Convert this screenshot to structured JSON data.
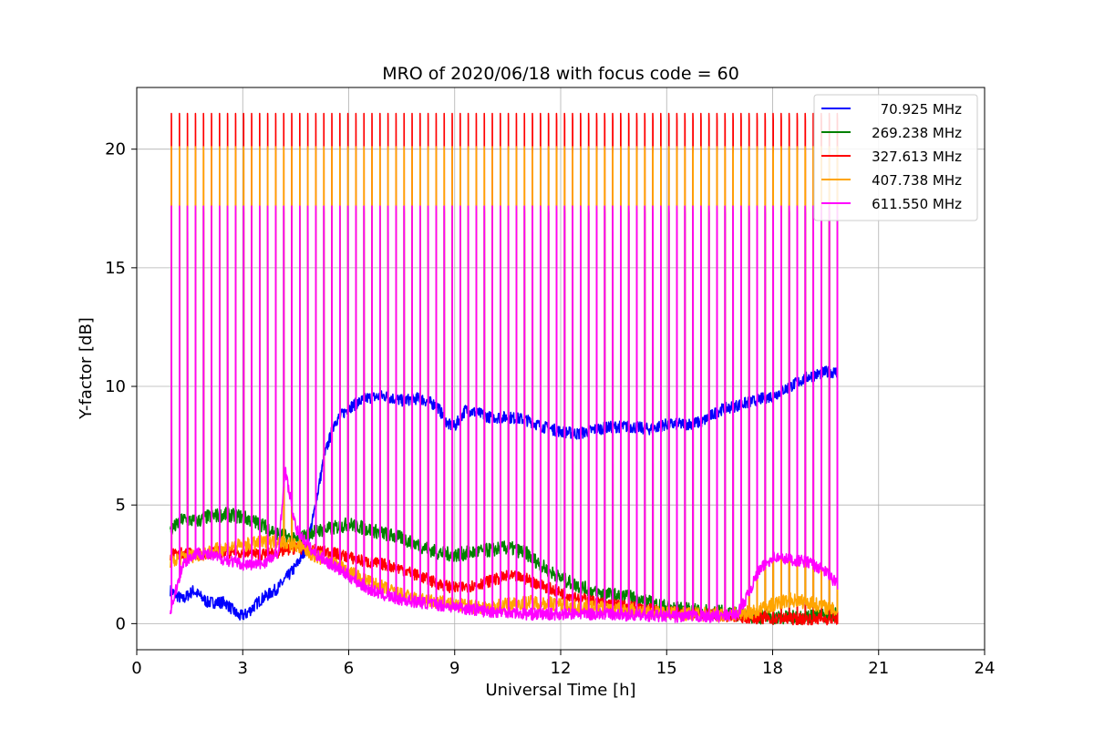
{
  "chart_data": {
    "type": "line",
    "title": "MRO of 2020/06/18 with focus code = 60",
    "xlabel": "Universal Time [h]",
    "ylabel": "Y-factor [dB]",
    "xlim": [
      0,
      24
    ],
    "ylim": [
      -1.1,
      22.6
    ],
    "x_ticks": [
      0,
      3,
      6,
      9,
      12,
      15,
      18,
      21,
      24
    ],
    "y_ticks": [
      0,
      5,
      10,
      15,
      20
    ],
    "grid": true,
    "legend_position": "top-right",
    "x_range_data": [
      0.9,
      19.9
    ],
    "pulses": {
      "count": 84,
      "start": 0.98,
      "end": 19.83,
      "peaks": {
        "327.613 MHz": 21.5,
        "407.738 MHz": 20.1,
        "611.550 MHz": 17.6,
        "269.238 MHz": 17.6
      }
    },
    "series": [
      {
        "name": "70.925 MHz",
        "color": "#0000ff",
        "x": [
          0.95,
          1.3,
          1.6,
          2.0,
          2.5,
          2.9,
          3.1,
          3.5,
          4.0,
          4.5,
          4.8,
          5.0,
          5.3,
          5.6,
          6.0,
          6.5,
          7.0,
          7.5,
          8.0,
          8.5,
          8.8,
          9.0,
          9.3,
          9.6,
          10.0,
          10.5,
          11.0,
          11.5,
          12.0,
          12.5,
          13.0,
          13.5,
          14.0,
          14.5,
          15.0,
          15.5,
          16.0,
          16.5,
          17.0,
          17.5,
          18.0,
          18.5,
          19.0,
          19.5,
          19.85
        ],
        "values": [
          1.4,
          1.0,
          1.4,
          0.9,
          0.9,
          0.3,
          0.4,
          1.0,
          1.5,
          2.4,
          3.2,
          4.5,
          7.0,
          8.5,
          9.1,
          9.5,
          9.6,
          9.4,
          9.5,
          9.2,
          8.4,
          8.3,
          9.0,
          8.9,
          8.7,
          8.7,
          8.6,
          8.3,
          8.1,
          8.0,
          8.2,
          8.3,
          8.3,
          8.2,
          8.4,
          8.4,
          8.5,
          9.0,
          9.2,
          9.4,
          9.6,
          10.0,
          10.4,
          10.6,
          10.6
        ]
      },
      {
        "name": "269.238 MHz",
        "color": "#008000",
        "x": [
          0.95,
          1.3,
          1.7,
          2.0,
          2.5,
          3.0,
          3.5,
          4.0,
          4.5,
          5.0,
          5.5,
          6.0,
          6.5,
          7.0,
          7.5,
          8.0,
          8.5,
          9.0,
          9.5,
          10.0,
          10.5,
          11.0,
          11.5,
          12.0,
          12.5,
          13.0,
          13.5,
          14.0,
          14.5,
          15.0,
          15.5,
          16.0,
          16.5,
          17.0,
          17.5,
          18.0,
          18.5,
          19.0,
          19.5,
          19.85
        ],
        "values": [
          3.9,
          4.4,
          4.3,
          4.5,
          4.6,
          4.5,
          4.2,
          3.8,
          3.5,
          3.9,
          4.0,
          4.2,
          4.0,
          3.8,
          3.6,
          3.3,
          3.0,
          2.9,
          3.0,
          3.1,
          3.2,
          3.0,
          2.4,
          1.9,
          1.6,
          1.3,
          1.2,
          1.1,
          0.9,
          0.7,
          0.6,
          0.5,
          0.5,
          0.4,
          0.3,
          0.25,
          0.25,
          0.3,
          0.35,
          0.4
        ]
      },
      {
        "name": "327.613 MHz",
        "color": "#ff0000",
        "x": [
          0.95,
          1.3,
          1.7,
          2.0,
          2.5,
          3.0,
          3.5,
          4.0,
          4.5,
          5.0,
          5.5,
          6.0,
          6.5,
          7.0,
          7.5,
          8.0,
          8.5,
          9.0,
          9.5,
          10.0,
          10.5,
          11.0,
          11.5,
          12.0,
          12.5,
          13.0,
          13.5,
          14.0,
          14.5,
          15.0,
          15.5,
          16.0,
          16.5,
          17.0,
          17.5,
          18.0,
          18.5,
          19.0,
          19.5,
          19.85
        ],
        "values": [
          2.9,
          3.0,
          2.9,
          3.0,
          3.0,
          3.0,
          2.9,
          3.0,
          3.2,
          3.1,
          3.0,
          2.8,
          2.6,
          2.5,
          2.3,
          2.0,
          1.7,
          1.5,
          1.6,
          1.8,
          2.0,
          1.9,
          1.6,
          1.3,
          1.1,
          0.9,
          0.8,
          0.7,
          0.6,
          0.5,
          0.45,
          0.4,
          0.35,
          0.3,
          0.25,
          0.2,
          0.2,
          0.2,
          0.2,
          0.2
        ]
      },
      {
        "name": "407.738 MHz",
        "color": "#ffa500",
        "x": [
          0.95,
          1.3,
          1.7,
          2.0,
          2.5,
          3.0,
          3.5,
          4.0,
          4.5,
          5.0,
          5.5,
          6.0,
          6.5,
          7.0,
          7.5,
          8.0,
          8.5,
          9.0,
          9.5,
          10.0,
          10.5,
          11.0,
          11.5,
          12.0,
          12.5,
          13.0,
          13.5,
          14.0,
          14.5,
          15.0,
          15.5,
          16.0,
          16.5,
          17.0,
          17.5,
          18.0,
          18.5,
          19.0,
          19.5,
          19.85
        ],
        "values": [
          2.6,
          2.8,
          2.9,
          3.0,
          3.2,
          3.3,
          3.4,
          3.5,
          3.3,
          2.9,
          2.6,
          2.2,
          1.8,
          1.5,
          1.2,
          1.0,
          0.9,
          0.8,
          0.7,
          0.7,
          0.8,
          0.9,
          0.9,
          0.8,
          0.7,
          0.7,
          0.6,
          0.6,
          0.5,
          0.45,
          0.4,
          0.4,
          0.4,
          0.4,
          0.5,
          0.8,
          1.0,
          0.9,
          0.7,
          0.5
        ]
      },
      {
        "name": "611.550 MHz",
        "color": "#ff00ff",
        "x": [
          0.95,
          1.3,
          1.7,
          2.0,
          2.5,
          3.0,
          3.5,
          4.0,
          4.2,
          4.5,
          5.0,
          5.5,
          6.0,
          6.5,
          7.0,
          7.5,
          8.0,
          8.5,
          9.0,
          9.5,
          10.0,
          10.5,
          11.0,
          11.5,
          12.0,
          12.5,
          13.0,
          13.5,
          14.0,
          14.5,
          15.0,
          15.5,
          16.0,
          16.5,
          17.0,
          17.3,
          17.6,
          18.0,
          18.5,
          19.0,
          19.5,
          19.85
        ],
        "values": [
          0.5,
          2.5,
          3.0,
          2.9,
          2.7,
          2.5,
          2.5,
          2.9,
          6.5,
          4.0,
          3.0,
          2.5,
          2.0,
          1.5,
          1.2,
          1.0,
          0.9,
          0.8,
          0.7,
          0.6,
          0.5,
          0.5,
          0.4,
          0.4,
          0.4,
          0.4,
          0.4,
          0.4,
          0.35,
          0.35,
          0.3,
          0.3,
          0.3,
          0.3,
          0.4,
          1.2,
          2.2,
          2.8,
          2.7,
          2.6,
          2.2,
          1.6
        ]
      }
    ]
  }
}
